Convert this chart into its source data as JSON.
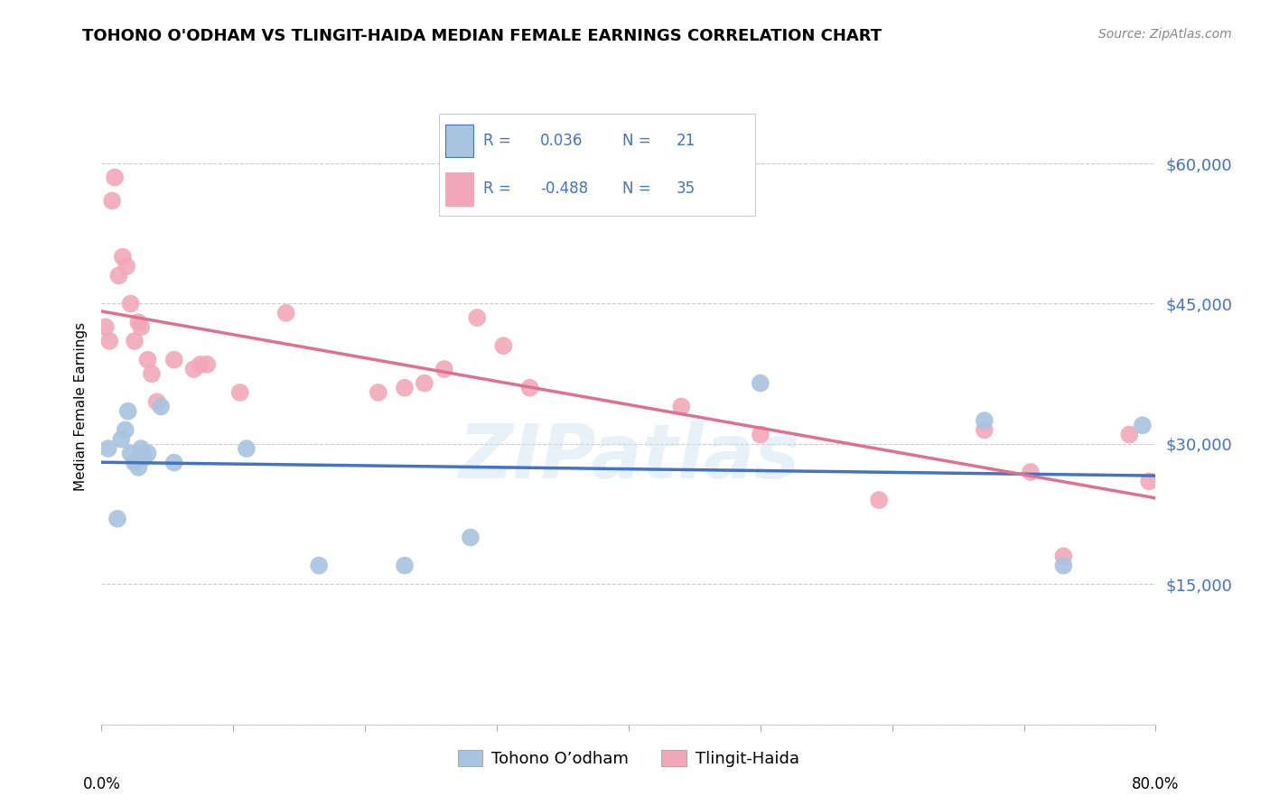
{
  "title": "TOHONO O'ODHAM VS TLINGIT-HAIDA MEDIAN FEMALE EARNINGS CORRELATION CHART",
  "source": "Source: ZipAtlas.com",
  "ylabel": "Median Female Earnings",
  "yticks": [
    0,
    15000,
    30000,
    45000,
    60000
  ],
  "ytick_labels": [
    "",
    "$15,000",
    "$30,000",
    "$45,000",
    "$60,000"
  ],
  "xmin": 0.0,
  "xmax": 80.0,
  "ymin": 0,
  "ymax": 68000,
  "r_blue": 0.036,
  "n_blue": 21,
  "r_pink": -0.488,
  "n_pink": 35,
  "legend_label_blue": "Tohono O’odham",
  "legend_label_pink": "Tlingit-Haida",
  "color_blue": "#a8c4e0",
  "color_pink": "#f2a8b8",
  "line_color_blue": "#4472c4",
  "line_color_pink": "#e07090",
  "watermark": "ZIPatlas",
  "blue_x": [
    0.5,
    1.2,
    1.5,
    1.8,
    2.0,
    2.2,
    2.5,
    2.8,
    3.0,
    3.2,
    3.5,
    4.5,
    5.5,
    11.0,
    16.5,
    23.0,
    28.0,
    50.0,
    67.0,
    73.0,
    79.0
  ],
  "blue_y": [
    29500,
    22000,
    30500,
    31500,
    33500,
    29000,
    28000,
    27500,
    29500,
    28500,
    29000,
    34000,
    28000,
    29500,
    17000,
    17000,
    20000,
    36500,
    32500,
    17000,
    32000
  ],
  "pink_x": [
    0.3,
    0.6,
    0.8,
    1.0,
    1.3,
    1.6,
    1.9,
    2.2,
    2.5,
    2.8,
    3.0,
    3.5,
    3.8,
    4.2,
    5.5,
    7.0,
    7.5,
    8.0,
    10.5,
    14.0,
    21.0,
    23.0,
    24.5,
    26.0,
    28.5,
    30.5,
    32.5,
    44.0,
    50.0,
    59.0,
    67.0,
    70.5,
    73.0,
    78.0,
    79.5
  ],
  "pink_y": [
    42500,
    41000,
    56000,
    58500,
    48000,
    50000,
    49000,
    45000,
    41000,
    43000,
    42500,
    39000,
    37500,
    34500,
    39000,
    38000,
    38500,
    38500,
    35500,
    44000,
    35500,
    36000,
    36500,
    38000,
    43500,
    40500,
    36000,
    34000,
    31000,
    24000,
    31500,
    27000,
    18000,
    31000,
    26000
  ]
}
